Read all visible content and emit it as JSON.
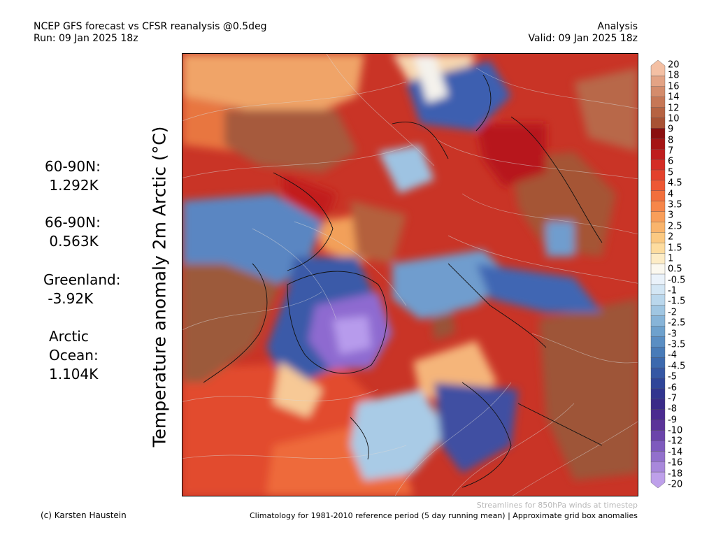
{
  "header": {
    "title_line1": "NCEP GFS forecast vs CFSR reanalysis @0.5deg",
    "title_line2": "Run: 09 Jan 2025 18z",
    "right_line1": "Analysis",
    "right_line2": "Valid: 09 Jan 2025 18z"
  },
  "map": {
    "ylabel": "Temperature anomaly 2m Arctic (°C)"
  },
  "stats": {
    "lat_60_90": {
      "label": "60-90N:",
      "value": "1.292K"
    },
    "lat_66_90": {
      "label": "66-90N:",
      "value": "0.563K"
    },
    "greenland": {
      "label": "Greenland:",
      "value": "-3.92K"
    },
    "arctic_ocean": {
      "label_line1": "Arctic",
      "label_line2": "Ocean:",
      "value": "1.104K"
    }
  },
  "colorbar": {
    "ticks": [
      "20",
      "18",
      "16",
      "14",
      "12",
      "10",
      "9",
      "8",
      "7",
      "6",
      "5",
      "4.5",
      "4",
      "3.5",
      "3",
      "2.5",
      "2",
      "1.5",
      "1",
      "0.5",
      "-0.5",
      "-1",
      "-1.5",
      "-2",
      "-2.5",
      "-3",
      "-3.5",
      "-4",
      "-4.5",
      "-5",
      "-6",
      "-7",
      "-8",
      "-9",
      "-10",
      "-12",
      "-14",
      "-16",
      "-18",
      "-20"
    ],
    "colors": [
      "#f4c0a4",
      "#e3a385",
      "#d48c6c",
      "#c67756",
      "#b66342",
      "#a85234",
      "#8a0f0f",
      "#a51515",
      "#bf1e1e",
      "#d42c25",
      "#e3412c",
      "#ed5834",
      "#f26f3c",
      "#f6864a",
      "#f89e5a",
      "#f9b46c",
      "#fbc982",
      "#fddc9f",
      "#fdecc6",
      "#fbf8ef",
      "#eaf2fa",
      "#d3e6f4",
      "#bad7ec",
      "#a0c6e2",
      "#87b4d8",
      "#6ea1cd",
      "#5a8ec3",
      "#487bb8",
      "#3c69ae",
      "#3557a4",
      "#2f4599",
      "#31358f",
      "#3a2b88",
      "#4a2a90",
      "#5b3399",
      "#6b44aa",
      "#7e5abd",
      "#9270cc",
      "#a888db",
      "#bea0ea"
    ]
  },
  "footer": {
    "credit": "(c) Karsten Haustein",
    "streamline_note": "Streamlines for 850hPa winds at timestep",
    "climatology": "Climatology for 1981-2010 reference period (5 day running mean) | Approximate grid box anomalies"
  }
}
